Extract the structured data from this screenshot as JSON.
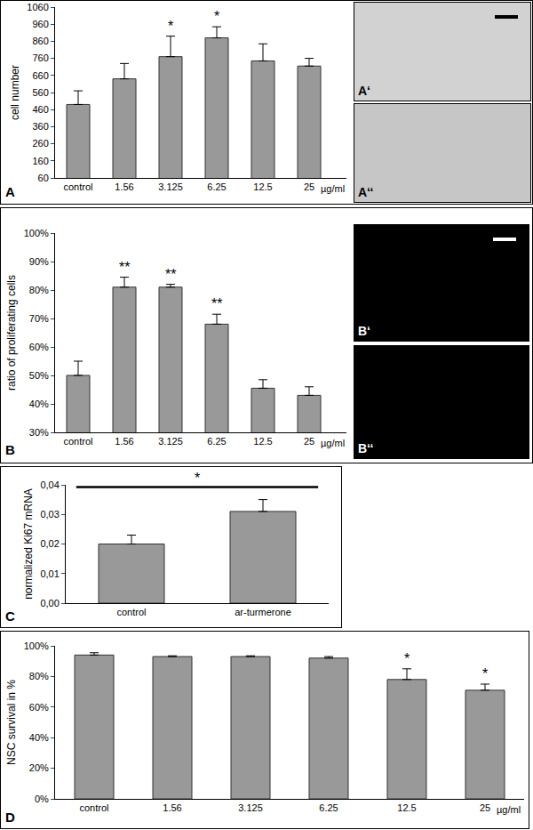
{
  "chart_data": [
    {
      "panel": "A",
      "type": "bar",
      "ylabel": "cell number",
      "categories": [
        "control",
        "1.56",
        "3.125",
        "6.25",
        "12.5",
        "25"
      ],
      "xlabel": "µg/ml",
      "values": [
        490,
        640,
        770,
        880,
        745,
        715
      ],
      "errors": [
        80,
        90,
        120,
        65,
        100,
        45
      ],
      "significance": [
        null,
        null,
        "*",
        "*",
        null,
        null
      ],
      "color": "#999999",
      "ylim": [
        60,
        1060
      ],
      "yticks": [
        60,
        160,
        260,
        360,
        460,
        560,
        660,
        760,
        860,
        960,
        1060
      ],
      "grid": false,
      "inset_labels": [
        "A‘",
        "A‘‘"
      ]
    },
    {
      "panel": "B",
      "type": "bar",
      "ylabel": "ratio of proliferating cells",
      "categories": [
        "control",
        "1.56",
        "3.125",
        "6.25",
        "12.5",
        "25"
      ],
      "xlabel": "µg/ml",
      "values": [
        50,
        81,
        81,
        68,
        45.5,
        43
      ],
      "errors": [
        5,
        3.5,
        1,
        3.5,
        3,
        3
      ],
      "significance": [
        null,
        "**",
        "**",
        "**",
        null,
        null
      ],
      "color": "#999999",
      "ylim": [
        30,
        100
      ],
      "yticks": [
        {
          "value": 30,
          "label": "30%"
        },
        {
          "value": 40,
          "label": "40%"
        },
        {
          "value": 50,
          "label": "50%"
        },
        {
          "value": 60,
          "label": "60%"
        },
        {
          "value": 70,
          "label": "70%"
        },
        {
          "value": 80,
          "label": "80%"
        },
        {
          "value": 90,
          "label": "90%"
        },
        {
          "value": 100,
          "label": "100%"
        }
      ],
      "grid": false,
      "inset_labels": [
        "B‘",
        "B‘‘"
      ]
    },
    {
      "panel": "C",
      "type": "bar",
      "ylabel": "normalized Ki67 mRNA",
      "categories": [
        "control",
        "ar-turmerone"
      ],
      "values": [
        0.02,
        0.031
      ],
      "errors": [
        0.003,
        0.004
      ],
      "comparison": {
        "from": "control",
        "to": "ar-turmerone",
        "label": "*"
      },
      "color": "#999999",
      "ylim": [
        0,
        0.04
      ],
      "yticks": [
        {
          "value": 0,
          "label": "0,00"
        },
        {
          "value": 0.01,
          "label": "0,01"
        },
        {
          "value": 0.02,
          "label": "0,02"
        },
        {
          "value": 0.03,
          "label": "0,03"
        },
        {
          "value": 0.04,
          "label": "0,04"
        }
      ],
      "grid": false
    },
    {
      "panel": "D",
      "type": "bar",
      "ylabel": "NSC survival in %",
      "categories": [
        "control",
        "1.56",
        "3.125",
        "6.25",
        "12.5",
        "25"
      ],
      "xlabel": "µg/ml",
      "values": [
        94,
        93,
        93,
        92,
        78,
        71
      ],
      "errors": [
        1.5,
        0.5,
        0.5,
        1,
        7,
        4
      ],
      "significance": [
        null,
        null,
        null,
        null,
        "*",
        "*"
      ],
      "color": "#999999",
      "ylim": [
        0,
        100
      ],
      "yticks": [
        {
          "value": 0,
          "label": "0%"
        },
        {
          "value": 20,
          "label": "20%"
        },
        {
          "value": 40,
          "label": "40%"
        },
        {
          "value": 60,
          "label": "60%"
        },
        {
          "value": 80,
          "label": "80%"
        },
        {
          "value": 100,
          "label": "100%"
        }
      ],
      "grid": false
    }
  ]
}
